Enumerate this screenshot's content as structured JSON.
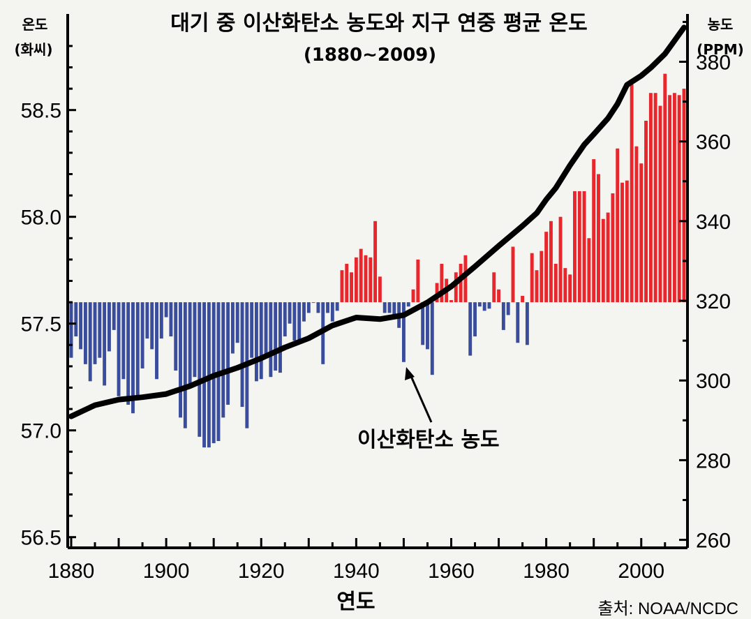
{
  "chart_data": {
    "type": "bar",
    "title": "대기 중 이산화탄소 농도와 지구 연중 평균 온도",
    "subtitle": "(1880~2009)",
    "xlabel": "연도",
    "ylabel_left": [
      "온도",
      "(화씨)"
    ],
    "ylabel_right": [
      "농도",
      "(PPM)"
    ],
    "source": "출처: NOAA/NCDC",
    "baseline": 57.6,
    "colors": {
      "positive": "#e8262b",
      "negative": "#3a4c9c",
      "line": "#000000"
    },
    "x_range": [
      1880,
      2009
    ],
    "x_ticks": [
      "1880",
      "1900",
      "1920",
      "1940",
      "1960",
      "1980",
      "2000"
    ],
    "ylim_left": [
      56.45,
      58.95
    ],
    "y_ticks_left": [
      "56.5",
      "57.0",
      "57.5",
      "58.0",
      "58.5"
    ],
    "ylim_right": [
      258,
      392
    ],
    "y_ticks_right": [
      "260",
      "280",
      "300",
      "320",
      "340",
      "360",
      "380"
    ],
    "series": [
      {
        "name": "지구 연중 평균 온도 (°F)",
        "axis": "left",
        "x": [
          1880,
          1881,
          1882,
          1883,
          1884,
          1885,
          1886,
          1887,
          1888,
          1889,
          1890,
          1891,
          1892,
          1893,
          1894,
          1895,
          1896,
          1897,
          1898,
          1899,
          1900,
          1901,
          1902,
          1903,
          1904,
          1905,
          1906,
          1907,
          1908,
          1909,
          1910,
          1911,
          1912,
          1913,
          1914,
          1915,
          1916,
          1917,
          1918,
          1919,
          1920,
          1921,
          1922,
          1923,
          1924,
          1925,
          1926,
          1927,
          1928,
          1929,
          1930,
          1931,
          1932,
          1933,
          1934,
          1935,
          1936,
          1937,
          1938,
          1939,
          1940,
          1941,
          1942,
          1943,
          1944,
          1945,
          1946,
          1947,
          1948,
          1949,
          1950,
          1951,
          1952,
          1953,
          1954,
          1955,
          1956,
          1957,
          1958,
          1959,
          1960,
          1961,
          1962,
          1963,
          1964,
          1965,
          1966,
          1967,
          1968,
          1969,
          1970,
          1971,
          1972,
          1973,
          1974,
          1975,
          1976,
          1977,
          1978,
          1979,
          1980,
          1981,
          1982,
          1983,
          1984,
          1985,
          1986,
          1987,
          1988,
          1989,
          1990,
          1991,
          1992,
          1993,
          1994,
          1995,
          1996,
          1997,
          1998,
          1999,
          2000,
          2001,
          2002,
          2003,
          2004,
          2005,
          2006,
          2007,
          2008,
          2009
        ],
        "values": [
          57.34,
          57.44,
          57.38,
          57.31,
          57.23,
          57.31,
          57.34,
          57.21,
          57.37,
          57.47,
          57.16,
          57.24,
          57.12,
          57.08,
          57.15,
          57.29,
          57.43,
          57.38,
          57.24,
          57.43,
          57.53,
          57.44,
          57.28,
          57.06,
          57.01,
          57.21,
          57.25,
          56.97,
          56.92,
          56.92,
          56.94,
          56.95,
          57.06,
          57.12,
          57.36,
          57.41,
          57.11,
          57.01,
          57.34,
          57.23,
          57.24,
          57.34,
          57.25,
          57.28,
          57.27,
          57.44,
          57.5,
          57.42,
          57.42,
          57.51,
          57.55,
          57.6,
          57.55,
          57.31,
          57.55,
          57.51,
          57.56,
          57.75,
          57.78,
          57.74,
          57.81,
          57.85,
          57.82,
          57.81,
          57.98,
          57.72,
          57.55,
          57.55,
          57.54,
          57.48,
          57.32,
          57.58,
          57.66,
          57.8,
          57.4,
          57.38,
          57.26,
          57.69,
          57.78,
          57.71,
          57.61,
          57.74,
          57.78,
          57.82,
          57.35,
          57.44,
          57.58,
          57.56,
          57.57,
          57.74,
          57.66,
          57.47,
          57.54,
          57.86,
          57.41,
          57.63,
          57.4,
          57.83,
          57.75,
          57.84,
          57.93,
          57.98,
          57.78,
          58.0,
          57.76,
          57.73,
          58.12,
          58.12,
          58.12,
          57.9,
          58.27,
          58.2,
          57.99,
          58.02,
          58.11,
          58.32,
          58.16,
          58.17,
          58.62,
          58.33,
          58.25,
          58.45,
          58.58,
          58.58,
          58.52,
          58.67,
          58.57,
          58.58,
          58.57,
          58.6
        ]
      },
      {
        "name": "이산화탄소 농도 (ppm)",
        "axis": "right",
        "x": [
          1880,
          1885,
          1890,
          1895,
          1900,
          1905,
          1910,
          1915,
          1920,
          1925,
          1930,
          1935,
          1940,
          1945,
          1950,
          1955,
          1960,
          1965,
          1970,
          1975,
          1978,
          1980,
          1982,
          1985,
          1988,
          1990,
          1993,
          1995,
          1997,
          2000,
          2002,
          2005,
          2007,
          2009
        ],
        "values": [
          291,
          293.8,
          295.2,
          295.8,
          296.6,
          298.6,
          301.2,
          303.2,
          305.6,
          308.3,
          310.6,
          313.8,
          315.8,
          315.4,
          316.4,
          319.6,
          323.6,
          328.6,
          333.8,
          338.8,
          342,
          345.4,
          348.3,
          354,
          359.2,
          361.8,
          365.8,
          369.4,
          374.2,
          376.5,
          378.5,
          382,
          385.3,
          388.6
        ]
      }
    ],
    "annotations": [
      {
        "text": "이산화탄소 농도",
        "points_to": {
          "x": 1950,
          "series": "이산화탄소 농도 (ppm)"
        }
      }
    ]
  }
}
